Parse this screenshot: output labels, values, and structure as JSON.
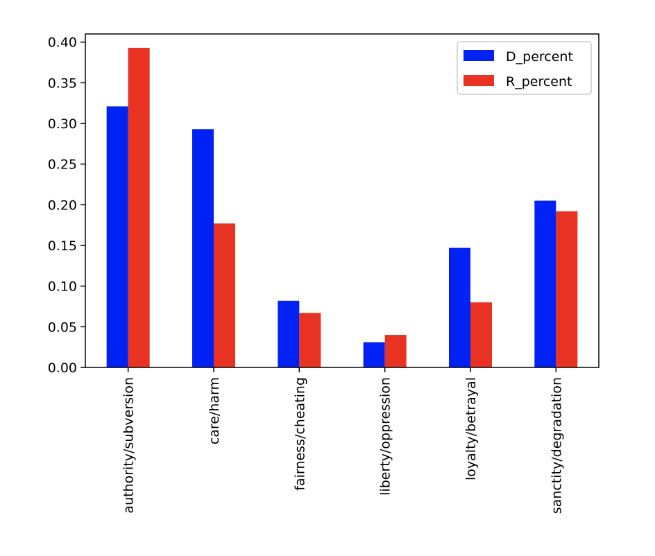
{
  "chart_data": {
    "type": "bar",
    "title": "",
    "xlabel": "",
    "ylabel": "",
    "categories": [
      "authority/subversion",
      "care/harm",
      "fairness/cheating",
      "liberty/oppression",
      "loyalty/betrayal",
      "sanctity/degradation"
    ],
    "series": [
      {
        "name": "D_percent",
        "color": "#0022f5",
        "values": [
          0.321,
          0.293,
          0.082,
          0.031,
          0.147,
          0.205
        ]
      },
      {
        "name": "R_percent",
        "color": "#e83323",
        "values": [
          0.393,
          0.177,
          0.067,
          0.04,
          0.08,
          0.192
        ]
      }
    ],
    "ylim": [
      0,
      0.41
    ],
    "yticks": [
      "0.00",
      "0.05",
      "0.10",
      "0.15",
      "0.20",
      "0.25",
      "0.30",
      "0.35",
      "0.40"
    ],
    "grid": false,
    "legend": "upper right"
  }
}
